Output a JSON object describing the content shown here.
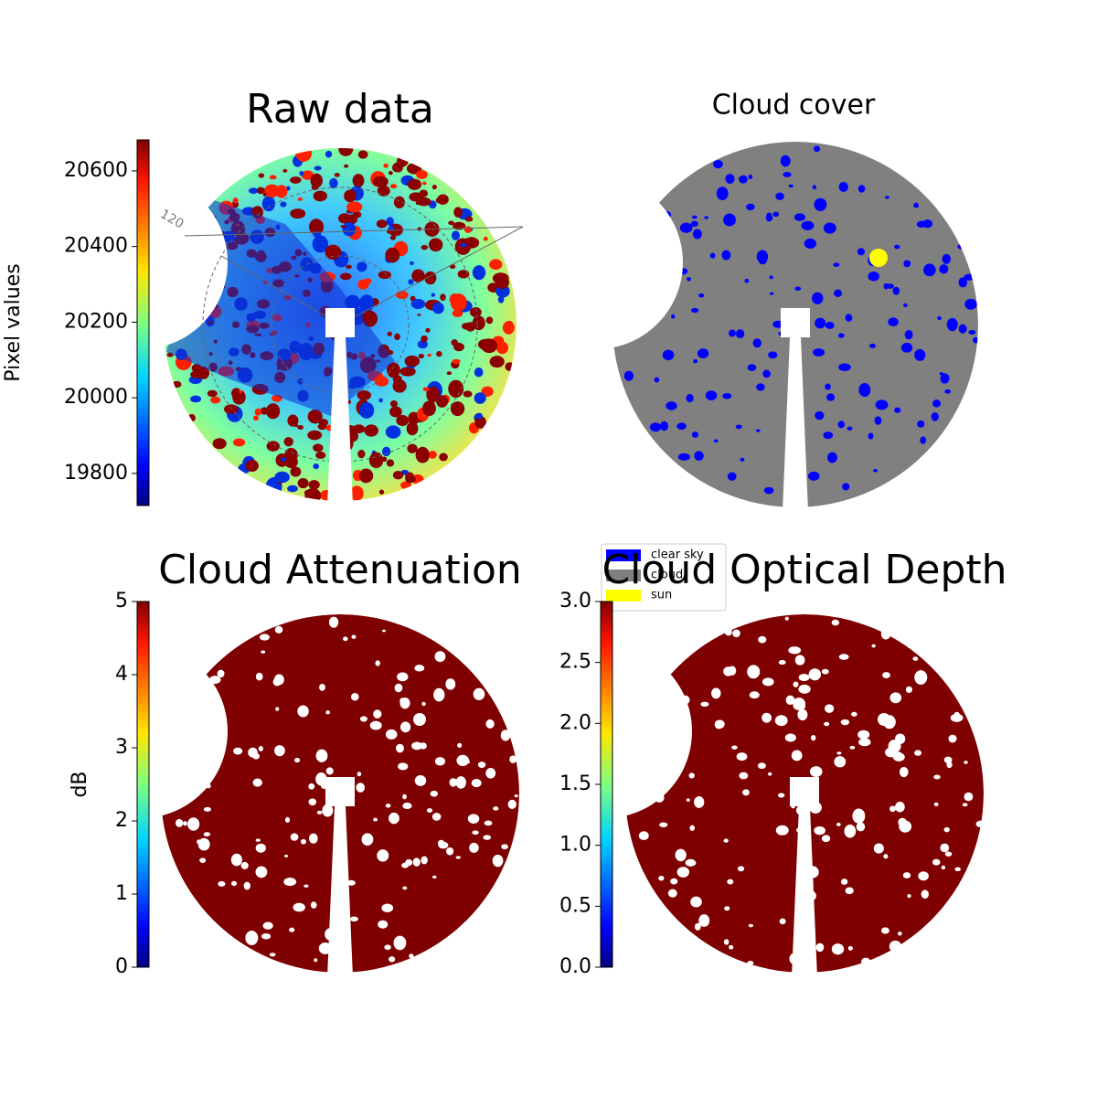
{
  "chart_data": [
    {
      "type": "image",
      "title": "Raw data",
      "ylabel": "Pixel values",
      "colormap": "jet",
      "ylim": [
        19715,
        20682
      ],
      "yticks": [
        19800,
        20000,
        20200,
        20400,
        20600
      ],
      "annotations": [
        "120"
      ]
    },
    {
      "type": "classes",
      "title": "Cloud cover",
      "series": [
        {
          "name": "clear sky",
          "color": "#0000ff"
        },
        {
          "name": "cloud",
          "color": "#808080"
        },
        {
          "name": "sun",
          "color": "#ffff00"
        }
      ]
    },
    {
      "type": "image",
      "title": "Cloud Attenuation",
      "ylabel": "dB",
      "colormap": "jet",
      "ylim": [
        0,
        5
      ],
      "yticks": [
        0,
        1,
        2,
        3,
        4,
        5
      ]
    },
    {
      "type": "image",
      "title": "Cloud Optical Depth",
      "colormap": "jet",
      "ylim": [
        0,
        3
      ],
      "yticks": [
        {
          "value": 0,
          "label": "0.0"
        },
        0.5,
        {
          "value": 1,
          "label": "1.0"
        },
        1.5,
        {
          "value": 2,
          "label": "2.0"
        },
        2.5,
        {
          "value": 3,
          "label": "3.0"
        }
      ]
    }
  ]
}
